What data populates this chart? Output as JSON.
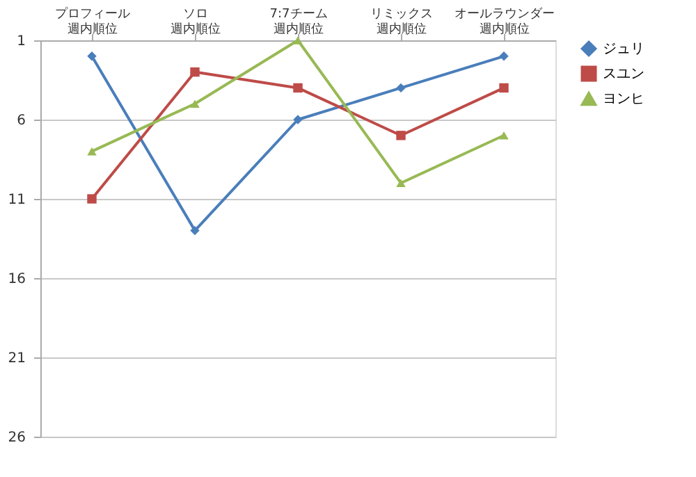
{
  "chart_data": {
    "type": "line",
    "categories": [
      "プロフィール週内順位",
      "ソロ週内順位",
      "7:7チーム週内順位",
      "リミックス週内順位",
      "オールラウンダー週内順位"
    ],
    "series": [
      {
        "name": "ジュリ",
        "color": "#4a7ebb",
        "marker": "diamond",
        "values": [
          2,
          13,
          6,
          4,
          2
        ]
      },
      {
        "name": "スユン",
        "color": "#be4b48",
        "marker": "square",
        "values": [
          11,
          3,
          4,
          7,
          4
        ]
      },
      {
        "name": "ヨンヒ",
        "color": "#98b954",
        "marker": "triangle",
        "values": [
          8,
          5,
          1,
          10,
          7
        ]
      }
    ],
    "ylim": [
      26,
      1
    ],
    "yticks": [
      1,
      6,
      11,
      16,
      21,
      26
    ],
    "grid": "y",
    "legend": "right",
    "line_style": "solid"
  }
}
